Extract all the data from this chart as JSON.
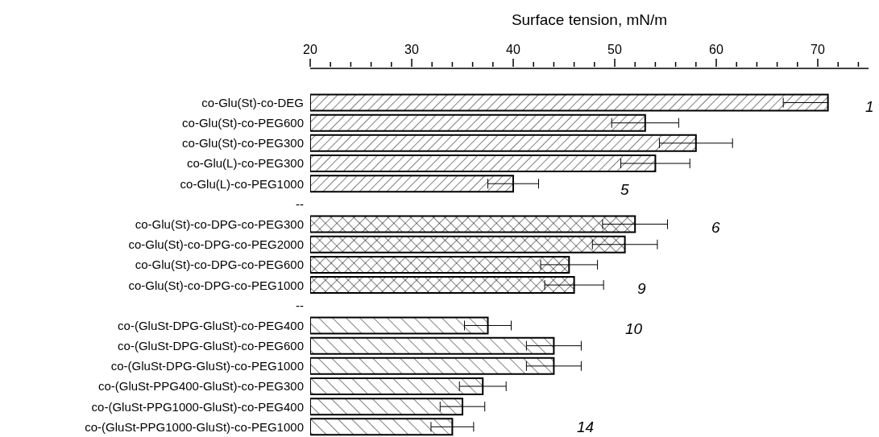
{
  "chart_data": {
    "type": "bar",
    "orientation": "horizontal",
    "xlabel": "Surface tension, mN/m",
    "categories": [
      "co-Glu(St)-co-DEG",
      "co-Glu(St)-co-PEG600",
      "co-Glu(St)-co-PEG300",
      "co-Glu(L)-co-PEG300",
      "co-Glu(L)-co-PEG1000",
      "--",
      "co-Glu(St)-co-DPG-co-PEG300",
      "co-Glu(St)-co-DPG-co-PEG2000",
      "co-Glu(St)-co-DPG-co-PEG600",
      "co-Glu(St)-co-DPG-co-PEG1000",
      "--",
      "co-(GluSt-DPG-GluSt)-co-PEG400",
      "co-(GluSt-DPG-GluSt)-co-PEG600",
      "co-(GluSt-DPG-GluSt)-co-PEG1000",
      "co-(GluSt-PPG400-GluSt)-co-PEG300",
      "co-(GluSt-PPG1000-GluSt)-co-PEG400",
      "co-(GluSt-PPG1000-GluSt)-co-PEG1000"
    ],
    "values": [
      71.0,
      53.0,
      58.0,
      54.0,
      40.0,
      null,
      52.0,
      51.0,
      45.5,
      46.0,
      null,
      37.5,
      44.0,
      44.0,
      37.0,
      35.0,
      34.0
    ],
    "errors": [
      [
        66.6,
        71.0
      ],
      3.3,
      3.6,
      3.4,
      2.5,
      null,
      3.2,
      3.2,
      2.8,
      2.9,
      null,
      2.3,
      2.7,
      2.7,
      2.3,
      2.2,
      2.1
    ],
    "color": "#000000",
    "xlim": [
      20,
      75
    ],
    "xticks": [
      20,
      30,
      40,
      50,
      60,
      70
    ],
    "annotations": [
      "1",
      "5",
      "6",
      "9",
      "10",
      "14"
    ],
    "grid": false,
    "legend": false
  }
}
